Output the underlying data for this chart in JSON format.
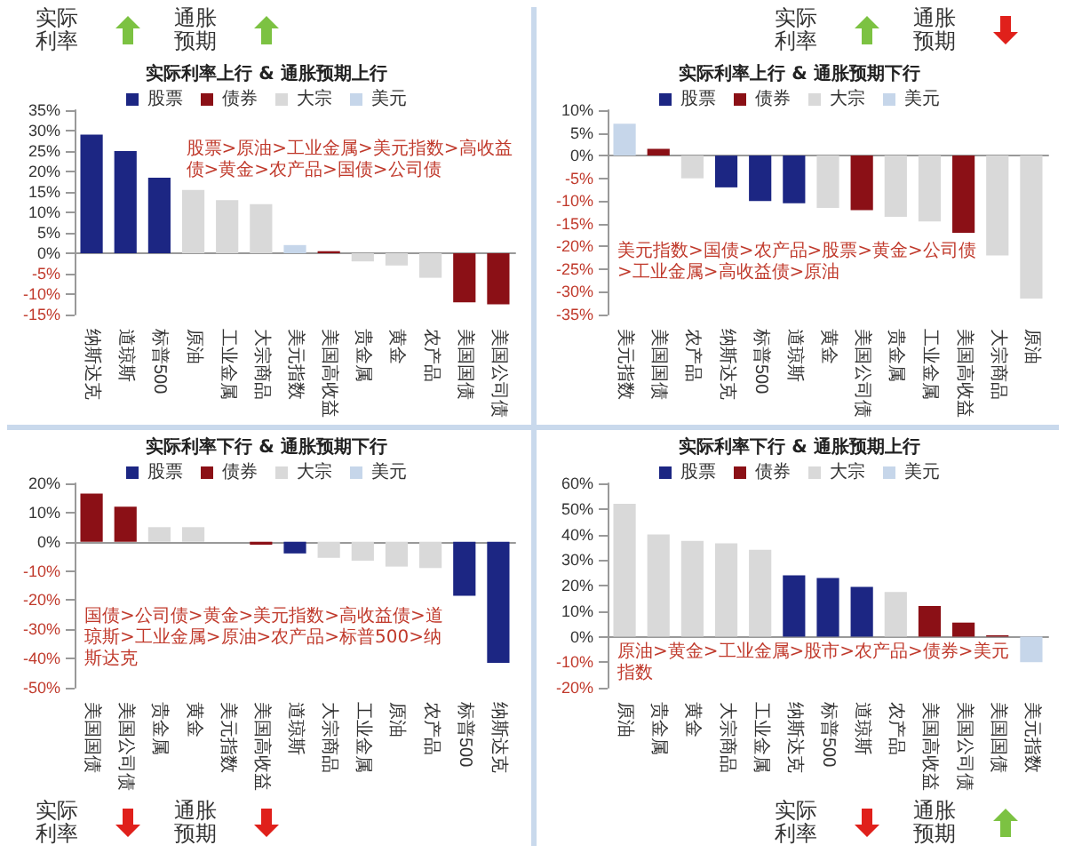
{
  "chart_data": [
    {
      "type": "bar",
      "title": "实际利率上行 & 通胀预期上行",
      "legend": "top",
      "categories": [
        "纳斯达克",
        "道琼斯",
        "标普500",
        "原油",
        "工业金属",
        "大宗商品",
        "美元指数",
        "美国高收益",
        "贵金属",
        "黄金",
        "农产品",
        "美国国债",
        "美国公司债"
      ],
      "series": [
        {
          "name": "股票",
          "color": "#1c2683",
          "values": [
            29,
            25,
            18.5,
            null,
            null,
            null,
            null,
            null,
            null,
            null,
            null,
            null,
            null
          ]
        },
        {
          "name": "债券",
          "color": "#8b1016",
          "values": [
            null,
            null,
            null,
            null,
            null,
            null,
            null,
            0.5,
            null,
            null,
            null,
            -12,
            -12.5
          ]
        },
        {
          "name": "大宗",
          "color": "#d9d9d9",
          "values": [
            null,
            null,
            null,
            15.5,
            13,
            12,
            null,
            null,
            -2,
            -3,
            -6,
            null,
            null
          ]
        },
        {
          "name": "美元",
          "color": "#c6d6ea",
          "values": [
            null,
            null,
            null,
            null,
            null,
            null,
            2,
            null,
            null,
            null,
            null,
            null,
            null
          ]
        }
      ],
      "ylim": [
        -15,
        35
      ],
      "yticks": [
        {
          "value": -15,
          "label": "-15%"
        },
        {
          "value": -10,
          "label": "-10%"
        },
        {
          "value": -5,
          "label": "-5%"
        },
        {
          "value": 0,
          "label": "0%"
        },
        {
          "value": 5,
          "label": "5%"
        },
        {
          "value": 10,
          "label": "10%"
        },
        {
          "value": 15,
          "label": "15%"
        },
        {
          "value": 20,
          "label": "20%"
        },
        {
          "value": 25,
          "label": "25%"
        },
        {
          "value": 30,
          "label": "30%"
        },
        {
          "value": 35,
          "label": "35%"
        }
      ],
      "annotations": [
        "股票>原油>工业金属>美元指数>高收益债>黄金>农产品>国债>公司债",
        "实际利率",
        "通胀预期"
      ]
    },
    {
      "type": "bar",
      "title": "实际利率上行 & 通胀预期下行",
      "legend": "top",
      "categories": [
        "美元指数",
        "美国国债",
        "农产品",
        "纳斯达克",
        "标普500",
        "道琼斯",
        "黄金",
        "美国公司债",
        "贵金属",
        "工业金属",
        "美国高收益",
        "大宗商品",
        "原油"
      ],
      "series": [
        {
          "name": "股票",
          "color": "#1c2683",
          "values": [
            null,
            null,
            null,
            -7,
            -10,
            -10.5,
            null,
            null,
            null,
            null,
            null,
            null,
            null
          ]
        },
        {
          "name": "债券",
          "color": "#8b1016",
          "values": [
            null,
            1.5,
            null,
            null,
            null,
            null,
            null,
            -12,
            null,
            null,
            -17,
            null,
            null
          ]
        },
        {
          "name": "大宗",
          "color": "#d9d9d9",
          "values": [
            null,
            null,
            -5,
            null,
            null,
            null,
            -11.5,
            null,
            -13.5,
            -14.5,
            null,
            -22,
            -31.5
          ]
        },
        {
          "name": "美元",
          "color": "#c6d6ea",
          "values": [
            7,
            null,
            null,
            null,
            null,
            null,
            null,
            null,
            null,
            null,
            null,
            null,
            null
          ]
        }
      ],
      "ylim": [
        -35,
        10
      ],
      "yticks": [
        {
          "value": -35,
          "label": "-35%"
        },
        {
          "value": -30,
          "label": "-30%"
        },
        {
          "value": -25,
          "label": "-25%"
        },
        {
          "value": -20,
          "label": "-20%"
        },
        {
          "value": -15,
          "label": "-15%"
        },
        {
          "value": -10,
          "label": "-10%"
        },
        {
          "value": -5,
          "label": "-5%"
        },
        {
          "value": 0,
          "label": "0%"
        },
        {
          "value": 5,
          "label": "5%"
        },
        {
          "value": 10,
          "label": "10%"
        }
      ],
      "annotations": [
        "美元指数>国债>农产品>股票>黄金>公司债>工业金属>高收益债>原油",
        "实际利率",
        "通胀预期"
      ]
    },
    {
      "type": "bar",
      "title": "实际利率下行 & 通胀预期下行",
      "legend": "top",
      "categories": [
        "美国国债",
        "美国公司债",
        "贵金属",
        "黄金",
        "美元指数",
        "美国高收益",
        "道琼斯",
        "大宗商品",
        "工业金属",
        "原油",
        "农产品",
        "标普500",
        "纳斯达克"
      ],
      "series": [
        {
          "name": "股票",
          "color": "#1c2683",
          "values": [
            null,
            null,
            null,
            null,
            null,
            null,
            -4,
            null,
            null,
            null,
            null,
            -18.5,
            -41.5
          ]
        },
        {
          "name": "债券",
          "color": "#8b1016",
          "values": [
            16.5,
            12,
            null,
            null,
            null,
            -1,
            null,
            null,
            null,
            null,
            null,
            null,
            null
          ]
        },
        {
          "name": "大宗",
          "color": "#d9d9d9",
          "values": [
            null,
            null,
            5,
            5,
            null,
            null,
            null,
            -5.5,
            -6.5,
            -8.5,
            -9,
            null,
            null
          ]
        },
        {
          "name": "美元",
          "color": "#c6d6ea",
          "values": [
            null,
            null,
            null,
            null,
            0,
            null,
            null,
            null,
            null,
            null,
            null,
            null,
            null
          ]
        }
      ],
      "ylim": [
        -50,
        20
      ],
      "yticks": [
        {
          "value": -50,
          "label": "-50%"
        },
        {
          "value": -40,
          "label": "-40%"
        },
        {
          "value": -30,
          "label": "-30%"
        },
        {
          "value": -20,
          "label": "-20%"
        },
        {
          "value": -10,
          "label": "-10%"
        },
        {
          "value": 0,
          "label": "0%"
        },
        {
          "value": 10,
          "label": "10%"
        },
        {
          "value": 20,
          "label": "20%"
        }
      ],
      "annotations": [
        "国债>公司债>黄金>美元指数>高收益债>道琼斯>工业金属>原油>农产品>标普500>纳斯达克",
        "实际利率",
        "通胀预期"
      ]
    },
    {
      "type": "bar",
      "title": "实际利率下行 & 通胀预期上行",
      "legend": "top",
      "categories": [
        "原油",
        "贵金属",
        "黄金",
        "大宗商品",
        "工业金属",
        "纳斯达克",
        "标普500",
        "道琼斯",
        "农产品",
        "美国高收益",
        "美国公司债",
        "美国国债",
        "美元指数"
      ],
      "series": [
        {
          "name": "股票",
          "color": "#1c2683",
          "values": [
            null,
            null,
            null,
            null,
            null,
            24,
            23,
            19.5,
            null,
            null,
            null,
            null,
            null
          ]
        },
        {
          "name": "债券",
          "color": "#8b1016",
          "values": [
            null,
            null,
            null,
            null,
            null,
            null,
            null,
            null,
            null,
            12,
            5.5,
            0.5,
            null
          ]
        },
        {
          "name": "大宗",
          "color": "#d9d9d9",
          "values": [
            52,
            40,
            37.5,
            36.5,
            34,
            null,
            null,
            null,
            17.5,
            null,
            null,
            null,
            null
          ]
        },
        {
          "name": "美元",
          "color": "#c6d6ea",
          "values": [
            null,
            null,
            null,
            null,
            null,
            null,
            null,
            null,
            null,
            null,
            null,
            null,
            -10
          ]
        }
      ],
      "ylim": [
        -20,
        60
      ],
      "yticks": [
        {
          "value": -20,
          "label": "-20%"
        },
        {
          "value": -10,
          "label": "-10%"
        },
        {
          "value": 0,
          "label": "0%"
        },
        {
          "value": 10,
          "label": "10%"
        },
        {
          "value": 20,
          "label": "20%"
        },
        {
          "value": 30,
          "label": "30%"
        },
        {
          "value": 40,
          "label": "40%"
        },
        {
          "value": 50,
          "label": "50%"
        },
        {
          "value": 60,
          "label": "60%"
        }
      ],
      "annotations": [
        "原油>黄金>工业金属>股市>农产品>债券>美元指数",
        "实际利率",
        "通胀预期"
      ]
    }
  ]
}
